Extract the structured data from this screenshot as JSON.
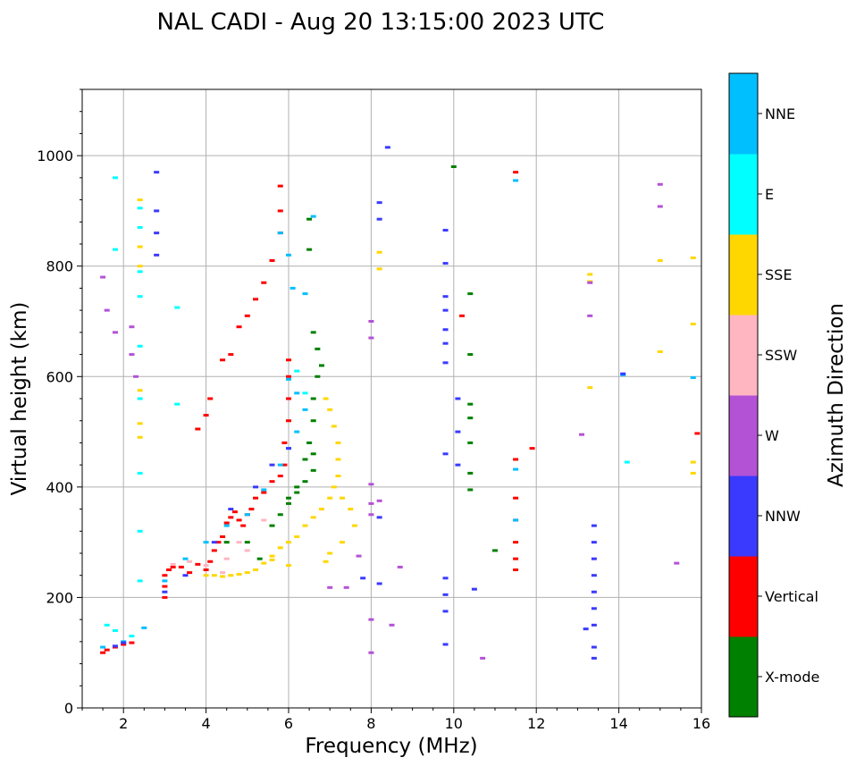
{
  "chart_data": {
    "type": "scatter",
    "title": "NAL CADI - Aug 20 13:15:00 2023 UTC",
    "xlabel": "Frequency (MHz)",
    "ylabel": "Virtual height (km)",
    "xlim": [
      1,
      16
    ],
    "ylim": [
      0,
      1120
    ],
    "xticks": [
      2,
      4,
      6,
      8,
      10,
      12,
      14,
      16
    ],
    "yticks": [
      0,
      200,
      400,
      600,
      800,
      1000
    ],
    "grid": true,
    "colorbar": {
      "label": "Azimuth Direction",
      "categories": [
        {
          "name": "X-mode",
          "color": "#008000"
        },
        {
          "name": "Vertical",
          "color": "#ff0000"
        },
        {
          "name": "NNW",
          "color": "#3a3aff"
        },
        {
          "name": "W",
          "color": "#b452d6"
        },
        {
          "name": "SSW",
          "color": "#ffb6c1"
        },
        {
          "name": "SSE",
          "color": "#ffd700"
        },
        {
          "name": "E",
          "color": "#00ffff"
        },
        {
          "name": "NNE",
          "color": "#00bfff"
        }
      ]
    },
    "series": [
      {
        "name": "Vertical",
        "points": [
          [
            1.5,
            100
          ],
          [
            1.6,
            105
          ],
          [
            1.8,
            110
          ],
          [
            2.0,
            115
          ],
          [
            2.2,
            118
          ],
          [
            3.0,
            200
          ],
          [
            3.0,
            220
          ],
          [
            3.0,
            240
          ],
          [
            3.1,
            250
          ],
          [
            3.2,
            255
          ],
          [
            3.4,
            255
          ],
          [
            3.6,
            245
          ],
          [
            3.8,
            260
          ],
          [
            4.0,
            250
          ],
          [
            4.1,
            265
          ],
          [
            4.2,
            285
          ],
          [
            4.3,
            300
          ],
          [
            4.4,
            310
          ],
          [
            4.5,
            335
          ],
          [
            4.6,
            345
          ],
          [
            4.7,
            355
          ],
          [
            4.8,
            340
          ],
          [
            4.9,
            330
          ],
          [
            5.0,
            350
          ],
          [
            5.1,
            360
          ],
          [
            5.2,
            380
          ],
          [
            5.4,
            390
          ],
          [
            5.6,
            410
          ],
          [
            5.8,
            420
          ],
          [
            5.9,
            440
          ],
          [
            5.9,
            480
          ],
          [
            6.0,
            520
          ],
          [
            6.0,
            560
          ],
          [
            6.0,
            600
          ],
          [
            6.0,
            630
          ],
          [
            4.0,
            530
          ],
          [
            3.8,
            505
          ],
          [
            4.1,
            560
          ],
          [
            4.4,
            630
          ],
          [
            4.6,
            640
          ],
          [
            4.8,
            690
          ],
          [
            5.0,
            710
          ],
          [
            5.2,
            740
          ],
          [
            5.4,
            770
          ],
          [
            5.6,
            810
          ],
          [
            5.8,
            860
          ],
          [
            5.8,
            900
          ],
          [
            5.8,
            945
          ],
          [
            10.2,
            710
          ],
          [
            11.5,
            970
          ],
          [
            11.5,
            450
          ],
          [
            11.5,
            380
          ],
          [
            11.5,
            340
          ],
          [
            11.5,
            300
          ],
          [
            11.5,
            270
          ],
          [
            11.5,
            250
          ],
          [
            11.9,
            470
          ],
          [
            15.9,
            497
          ]
        ]
      },
      {
        "name": "X-mode",
        "points": [
          [
            5.6,
            330
          ],
          [
            5.8,
            350
          ],
          [
            6.0,
            370
          ],
          [
            6.2,
            390
          ],
          [
            6.4,
            410
          ],
          [
            6.6,
            430
          ],
          [
            6.6,
            460
          ],
          [
            6.6,
            520
          ],
          [
            6.6,
            560
          ],
          [
            6.7,
            600
          ],
          [
            6.8,
            620
          ],
          [
            6.7,
            650
          ],
          [
            6.6,
            680
          ],
          [
            6.5,
            480
          ],
          [
            6.4,
            450
          ],
          [
            6.2,
            400
          ],
          [
            6.0,
            380
          ],
          [
            6.5,
            830
          ],
          [
            6.5,
            885
          ],
          [
            10.0,
            980
          ],
          [
            10.4,
            750
          ],
          [
            10.4,
            640
          ],
          [
            10.4,
            550
          ],
          [
            10.4,
            525
          ],
          [
            10.4,
            480
          ],
          [
            10.4,
            425
          ],
          [
            10.4,
            395
          ],
          [
            11.0,
            285
          ],
          [
            5.3,
            270
          ],
          [
            5.0,
            300
          ],
          [
            4.5,
            300
          ]
        ]
      },
      {
        "name": "SSE",
        "points": [
          [
            4.0,
            240
          ],
          [
            4.2,
            240
          ],
          [
            4.4,
            238
          ],
          [
            4.6,
            240
          ],
          [
            4.8,
            242
          ],
          [
            5.0,
            245
          ],
          [
            5.2,
            250
          ],
          [
            5.4,
            262
          ],
          [
            5.6,
            275
          ],
          [
            5.8,
            290
          ],
          [
            6.0,
            300
          ],
          [
            6.2,
            310
          ],
          [
            6.4,
            330
          ],
          [
            6.6,
            345
          ],
          [
            6.8,
            360
          ],
          [
            7.0,
            380
          ],
          [
            7.1,
            400
          ],
          [
            7.2,
            420
          ],
          [
            7.2,
            450
          ],
          [
            7.2,
            480
          ],
          [
            7.1,
            510
          ],
          [
            7.0,
            540
          ],
          [
            6.9,
            560
          ],
          [
            7.3,
            380
          ],
          [
            7.5,
            360
          ],
          [
            7.6,
            330
          ],
          [
            7.3,
            300
          ],
          [
            7.0,
            280
          ],
          [
            6.9,
            265
          ],
          [
            6.0,
            258
          ],
          [
            5.6,
            268
          ],
          [
            2.4,
            920
          ],
          [
            2.4,
            835
          ],
          [
            2.4,
            800
          ],
          [
            2.4,
            575
          ],
          [
            2.4,
            515
          ],
          [
            2.4,
            490
          ],
          [
            8.2,
            825
          ],
          [
            8.2,
            795
          ],
          [
            13.3,
            785
          ],
          [
            13.3,
            772
          ],
          [
            13.3,
            580
          ],
          [
            15.0,
            810
          ],
          [
            15.0,
            645
          ],
          [
            15.8,
            815
          ],
          [
            15.8,
            695
          ],
          [
            15.8,
            445
          ],
          [
            15.8,
            425
          ]
        ]
      },
      {
        "name": "NNE",
        "points": [
          [
            1.5,
            110
          ],
          [
            2.0,
            120
          ],
          [
            2.5,
            145
          ],
          [
            3.0,
            230
          ],
          [
            3.5,
            270
          ],
          [
            4.0,
            300
          ],
          [
            4.5,
            330
          ],
          [
            5.0,
            350
          ],
          [
            5.4,
            395
          ],
          [
            5.8,
            440
          ],
          [
            6.0,
            470
          ],
          [
            6.2,
            500
          ],
          [
            6.4,
            540
          ],
          [
            6.2,
            570
          ],
          [
            6.0,
            595
          ],
          [
            5.8,
            860
          ],
          [
            6.0,
            820
          ],
          [
            6.1,
            760
          ],
          [
            6.4,
            750
          ],
          [
            6.6,
            890
          ],
          [
            14.1,
            603
          ],
          [
            15.8,
            598
          ],
          [
            11.5,
            955
          ],
          [
            11.5,
            432
          ],
          [
            11.5,
            340
          ]
        ]
      },
      {
        "name": "E",
        "points": [
          [
            1.6,
            150
          ],
          [
            1.8,
            140
          ],
          [
            2.2,
            130
          ],
          [
            2.4,
            230
          ],
          [
            2.4,
            320
          ],
          [
            2.4,
            425
          ],
          [
            2.4,
            560
          ],
          [
            2.4,
            655
          ],
          [
            2.4,
            745
          ],
          [
            2.4,
            790
          ],
          [
            2.4,
            870
          ],
          [
            2.4,
            905
          ],
          [
            1.8,
            830
          ],
          [
            1.8,
            960
          ],
          [
            3.3,
            725
          ],
          [
            3.3,
            550
          ],
          [
            6.2,
            610
          ],
          [
            6.4,
            570
          ],
          [
            14.2,
            445
          ]
        ]
      },
      {
        "name": "NNW",
        "points": [
          [
            1.8,
            112
          ],
          [
            2.0,
            118
          ],
          [
            3.0,
            210
          ],
          [
            3.5,
            240
          ],
          [
            4.2,
            300
          ],
          [
            4.6,
            360
          ],
          [
            5.2,
            400
          ],
          [
            5.6,
            440
          ],
          [
            6.0,
            470
          ],
          [
            2.8,
            970
          ],
          [
            2.8,
            900
          ],
          [
            2.8,
            860
          ],
          [
            2.8,
            820
          ],
          [
            8.2,
            915
          ],
          [
            8.2,
            885
          ],
          [
            8.4,
            1015
          ],
          [
            8.2,
            345
          ],
          [
            8.2,
            225
          ],
          [
            7.8,
            235
          ],
          [
            9.8,
            865
          ],
          [
            9.8,
            805
          ],
          [
            9.8,
            745
          ],
          [
            9.8,
            720
          ],
          [
            9.8,
            685
          ],
          [
            9.8,
            660
          ],
          [
            9.8,
            625
          ],
          [
            9.8,
            460
          ],
          [
            9.8,
            235
          ],
          [
            9.8,
            205
          ],
          [
            9.8,
            175
          ],
          [
            9.8,
            115
          ],
          [
            10.1,
            560
          ],
          [
            10.1,
            500
          ],
          [
            10.1,
            440
          ],
          [
            10.5,
            215
          ],
          [
            13.4,
            330
          ],
          [
            13.4,
            300
          ],
          [
            13.4,
            270
          ],
          [
            13.4,
            240
          ],
          [
            13.4,
            210
          ],
          [
            13.4,
            180
          ],
          [
            13.4,
            150
          ],
          [
            13.4,
            110
          ],
          [
            13.4,
            90
          ],
          [
            13.2,
            143
          ],
          [
            14.1,
            605
          ]
        ]
      },
      {
        "name": "W",
        "points": [
          [
            1.5,
            780
          ],
          [
            1.6,
            720
          ],
          [
            1.8,
            680
          ],
          [
            2.2,
            690
          ],
          [
            2.2,
            640
          ],
          [
            2.3,
            600
          ],
          [
            8.0,
            700
          ],
          [
            8.0,
            670
          ],
          [
            8.0,
            405
          ],
          [
            8.0,
            370
          ],
          [
            8.0,
            350
          ],
          [
            8.0,
            160
          ],
          [
            8.0,
            100
          ],
          [
            8.2,
            375
          ],
          [
            8.5,
            150
          ],
          [
            8.7,
            255
          ],
          [
            10.7,
            90
          ],
          [
            13.1,
            495
          ],
          [
            13.3,
            710
          ],
          [
            13.3,
            770
          ],
          [
            15.0,
            948
          ],
          [
            15.0,
            908
          ],
          [
            15.4,
            262
          ],
          [
            7.7,
            275
          ],
          [
            7.4,
            218
          ],
          [
            7.0,
            218
          ]
        ]
      },
      {
        "name": "SSW",
        "points": [
          [
            3.2,
            260
          ],
          [
            3.6,
            265
          ],
          [
            4.0,
            258
          ],
          [
            4.5,
            270
          ],
          [
            5.0,
            285
          ],
          [
            4.4,
            245
          ],
          [
            4.8,
            300
          ],
          [
            5.4,
            340
          ]
        ]
      }
    ]
  }
}
